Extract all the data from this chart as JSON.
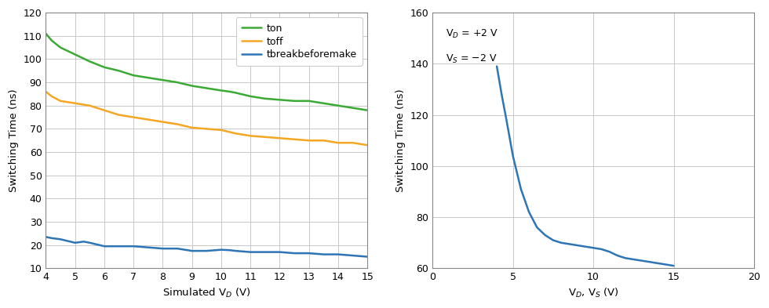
{
  "chart1": {
    "xlabel": "Simulated V$_D$ (V)",
    "ylabel": "Switching Time (ns)",
    "xlim": [
      4,
      15
    ],
    "ylim": [
      10,
      120
    ],
    "xticks": [
      4,
      5,
      6,
      7,
      8,
      9,
      10,
      11,
      12,
      13,
      14,
      15
    ],
    "yticks": [
      10,
      20,
      30,
      40,
      50,
      60,
      70,
      80,
      90,
      100,
      110,
      120
    ],
    "ton_color": "#3aaa35",
    "toff_color": "#f5a623",
    "tbbm_color": "#2e75b6",
    "ton_label": "ton",
    "toff_label": "toff",
    "tbbm_label": "tbreakbeforemake",
    "ton_x": [
      4.0,
      4.2,
      4.5,
      5.0,
      5.5,
      6.0,
      6.5,
      7.0,
      7.5,
      8.0,
      8.5,
      9.0,
      9.5,
      10.0,
      10.3,
      10.5,
      11.0,
      11.5,
      12.0,
      12.5,
      13.0,
      13.5,
      14.0,
      14.5,
      15.0
    ],
    "ton_y": [
      111,
      108,
      105,
      102,
      99,
      96.5,
      95,
      93,
      92,
      91,
      90,
      88.5,
      87.5,
      86.5,
      86,
      85.5,
      84,
      83,
      82.5,
      82,
      82,
      81,
      80,
      79,
      78
    ],
    "toff_x": [
      4.0,
      4.2,
      4.5,
      5.0,
      5.5,
      6.0,
      6.5,
      7.0,
      7.5,
      8.0,
      8.5,
      9.0,
      9.5,
      10.0,
      10.5,
      11.0,
      11.5,
      12.0,
      12.5,
      13.0,
      13.5,
      14.0,
      14.5,
      15.0
    ],
    "toff_y": [
      86,
      84,
      82,
      81,
      80,
      78,
      76,
      75,
      74,
      73,
      72,
      70.5,
      70,
      69.5,
      68,
      67,
      66.5,
      66,
      65.5,
      65,
      65,
      64,
      64,
      63
    ],
    "tbbm_x": [
      4.0,
      4.2,
      4.5,
      5.0,
      5.3,
      5.5,
      6.0,
      6.5,
      7.0,
      7.5,
      8.0,
      8.5,
      9.0,
      9.5,
      10.0,
      10.3,
      10.5,
      11.0,
      11.5,
      12.0,
      12.5,
      13.0,
      13.5,
      14.0,
      14.5,
      15.0
    ],
    "tbbm_y": [
      23.5,
      23,
      22.5,
      21,
      21.5,
      21,
      19.5,
      19.5,
      19.5,
      19,
      18.5,
      18.5,
      17.5,
      17.5,
      18,
      17.8,
      17.5,
      17,
      17,
      17,
      16.5,
      16.5,
      16,
      16,
      15.5,
      15
    ]
  },
  "chart2": {
    "xlabel": "V$_D$, V$_S$ (V)",
    "ylabel": "Switching Time (ns)",
    "xlim": [
      0,
      20
    ],
    "ylim": [
      60,
      160
    ],
    "xticks": [
      0,
      5,
      10,
      15,
      20
    ],
    "yticks": [
      60,
      80,
      100,
      120,
      140,
      160
    ],
    "line_color": "#2e75b6",
    "ann_line1": "V$_D$ = +2 V",
    "ann_line2": "V$_S$ = −2 V",
    "ann_x": 0.8,
    "ann_y": 154,
    "curve_x": [
      4.0,
      4.3,
      4.6,
      5.0,
      5.5,
      6.0,
      6.5,
      7.0,
      7.5,
      8.0,
      8.5,
      9.0,
      9.5,
      10.0,
      10.5,
      11.0,
      11.5,
      12.0,
      12.5,
      13.0,
      13.5,
      14.0,
      14.5,
      15.0
    ],
    "curve_y": [
      139,
      128,
      118,
      104,
      91,
      82,
      76,
      73,
      71,
      70,
      69.5,
      69,
      68.5,
      68,
      67.5,
      66.5,
      65,
      64,
      63.5,
      63,
      62.5,
      62,
      61.5,
      61
    ]
  },
  "background_color": "#ffffff",
  "grid_color": "#c8c8c8",
  "spine_color": "#888888"
}
